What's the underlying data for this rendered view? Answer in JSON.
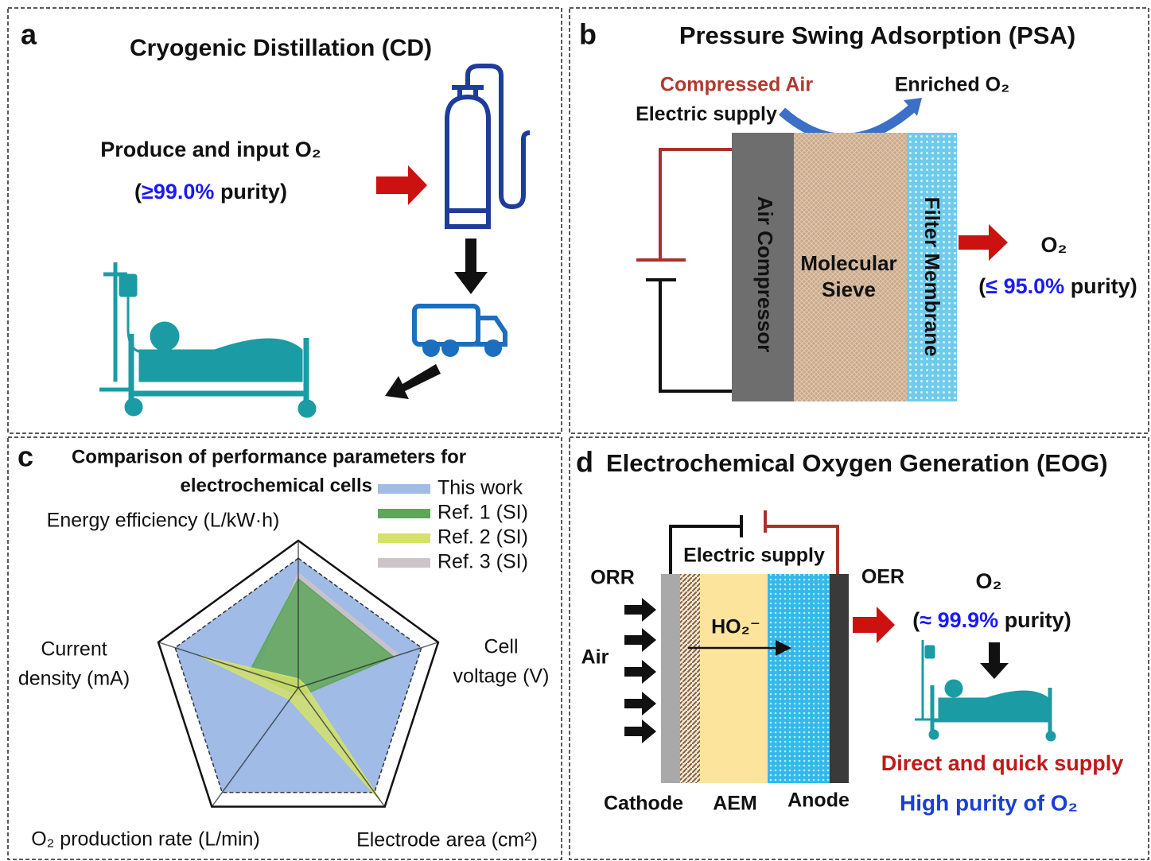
{
  "panel_a": {
    "label": "a",
    "title": "Cryogenic Distillation (CD)",
    "text": "Produce and input O₂",
    "purity": [
      "(",
      "≥99.0%",
      " purity)"
    ]
  },
  "panel_b": {
    "label": "b",
    "title": "Pressure Swing Adsorption (PSA)",
    "compressed_air": "Compressed Air",
    "enriched": "Enriched O₂",
    "electric_supply": "Electric supply",
    "air_compressor": "Air Compressor",
    "molecular_sieve": [
      "Molecular",
      "Sieve"
    ],
    "filter_membrane": "Filter Membrane",
    "output": "O₂",
    "purity": [
      "(",
      "≤ 95.0%",
      " purity)"
    ]
  },
  "chart_data": {
    "type": "radar",
    "label": "c",
    "title": [
      "Comparison of performance parameters for",
      "electrochemical cells"
    ],
    "categories": [
      [
        "Energy efficiency (L/kW·h)"
      ],
      [
        "Cell",
        "voltage (V)"
      ],
      [
        "Electrode area (cm²)"
      ],
      [
        "O₂ production rate (L/min)"
      ],
      [
        "Current",
        "density (mA)"
      ]
    ],
    "rlim": [
      0,
      1
    ],
    "series": [
      {
        "name": "This work",
        "color": "#9fbbe6",
        "values": [
          0.88,
          0.88,
          0.88,
          0.88,
          0.88
        ]
      },
      {
        "name": "Ref. 3 (SI)",
        "color": "#cdc3c8",
        "values": [
          0.78,
          0.72,
          0.05,
          0.05,
          0.3
        ]
      },
      {
        "name": "Ref. 1 (SI)",
        "color": "#5ea65a",
        "values": [
          0.74,
          0.68,
          0.06,
          0.05,
          0.35
        ]
      },
      {
        "name": "Ref. 2 (SI)",
        "color": "#d4e16a",
        "values": [
          0.06,
          0.05,
          0.95,
          0.1,
          0.7
        ]
      }
    ],
    "legend_order": [
      0,
      2,
      3,
      1
    ]
  },
  "panel_d": {
    "label": "d",
    "title": "Electrochemical Oxygen Generation (EOG)",
    "electric_supply": "Electric supply",
    "orr": "ORR",
    "oer": "OER",
    "air": "Air",
    "ion": "HO₂⁻",
    "output": "O₂",
    "purity": [
      "(",
      "≈ 99.9%",
      " purity)"
    ],
    "direct": "Direct and quick supply",
    "high_purity": "High purity of O₂",
    "cathode": "Cathode",
    "aem": "AEM",
    "anode": "Anode"
  }
}
